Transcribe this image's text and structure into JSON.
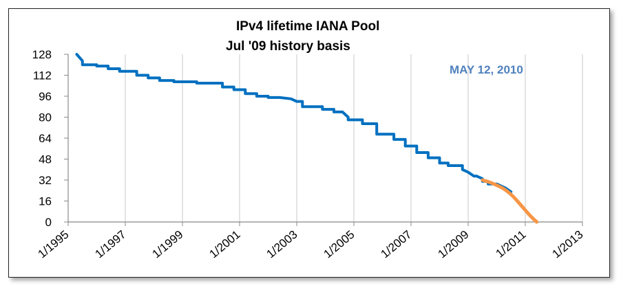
{
  "chart_data": {
    "type": "line",
    "title": "IPv4 lifetime IANA Pool",
    "subtitle": "Jul '09 history basis",
    "xlabel": "",
    "ylabel": "",
    "x_tick_labels": [
      "1/1995",
      "1/1997",
      "1/1999",
      "1/2001",
      "1/2003",
      "1/2005",
      "1/2007",
      "1/2009",
      "1/2011",
      "1/2013"
    ],
    "y_tick_labels": [
      "0",
      "16",
      "32",
      "48",
      "64",
      "80",
      "96",
      "112",
      "128"
    ],
    "xlim": [
      1995.0,
      2013.0
    ],
    "ylim": [
      0,
      128
    ],
    "grid": "vertical",
    "annotation": {
      "text": "MAY 12, 2010",
      "color": "#4F81BD"
    },
    "series": [
      {
        "role": "history",
        "color": "#0070C0",
        "style": "step",
        "x": [
          1995.3,
          1995.5,
          1995.5,
          1996.0,
          1996.0,
          1996.4,
          1996.4,
          1996.8,
          1996.8,
          1997.4,
          1997.4,
          1997.8,
          1997.8,
          1998.2,
          1998.2,
          1998.7,
          1998.7,
          1999.1,
          1999.5,
          1999.5,
          2000.4,
          2000.4,
          2000.8,
          2000.8,
          2001.2,
          2001.2,
          2001.6,
          2001.6,
          2002.0,
          2002.0,
          2002.4,
          2002.8,
          2003.0,
          2003.2,
          2003.2,
          2003.9,
          2003.9,
          2004.3,
          2004.3,
          2004.6,
          2004.8,
          2004.8,
          2005.3,
          2005.3,
          2005.8,
          2005.8,
          2006.4,
          2006.4,
          2006.6,
          2006.8,
          2006.8,
          2007.2,
          2007.2,
          2007.6,
          2007.6,
          2008.0,
          2008.0,
          2008.3,
          2008.3,
          2008.8,
          2008.8,
          2009.0,
          2009.2,
          2009.3,
          2009.5,
          2009.5,
          2009.7,
          2009.7,
          2010.0,
          2010.3,
          2010.5
        ],
        "y": [
          128,
          123,
          120,
          120,
          119,
          119,
          117,
          117,
          115,
          115,
          112,
          112,
          110,
          110,
          108,
          108,
          107,
          107,
          107,
          106,
          106,
          103,
          103,
          101,
          101,
          98,
          98,
          96,
          96,
          95,
          95,
          94,
          92,
          92,
          88,
          88,
          86,
          86,
          84,
          84,
          80,
          78,
          78,
          75,
          75,
          67,
          67,
          63,
          63,
          63,
          58,
          58,
          53,
          53,
          49,
          49,
          45,
          45,
          43,
          43,
          40,
          38,
          35,
          35,
          33,
          31,
          31,
          29,
          29,
          26,
          23
        ]
      },
      {
        "role": "projection",
        "color": "#F79646",
        "style": "curve",
        "x": [
          2009.5,
          2009.8,
          2010.0,
          2010.2,
          2010.4,
          2010.6,
          2010.8,
          2011.0,
          2011.2,
          2011.4
        ],
        "y": [
          32,
          30,
          28,
          26,
          23,
          19,
          14,
          9,
          4,
          0
        ]
      }
    ]
  }
}
